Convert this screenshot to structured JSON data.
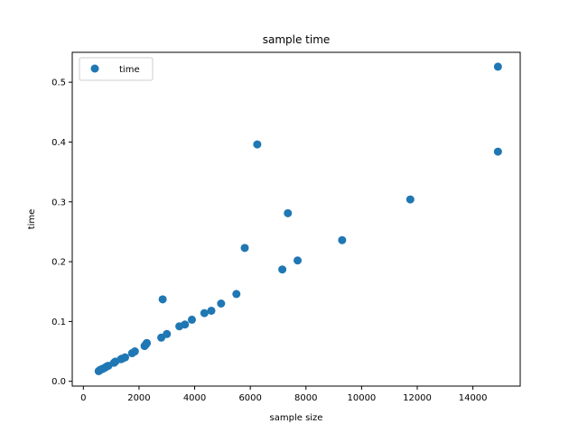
{
  "chart_data": {
    "type": "scatter",
    "title": "sample time",
    "xlabel": "sample size",
    "ylabel": "time",
    "xlim": [
      -400,
      15700
    ],
    "ylim": [
      -0.008,
      0.55
    ],
    "xticks": [
      0,
      2000,
      4000,
      6000,
      8000,
      10000,
      12000,
      14000
    ],
    "xtick_labels": [
      "0",
      "2000",
      "4000",
      "6000",
      "8000",
      "10000",
      "12000",
      "14000"
    ],
    "yticks": [
      0.0,
      0.1,
      0.2,
      0.3,
      0.4,
      0.5
    ],
    "ytick_labels": [
      "0.0",
      "0.1",
      "0.2",
      "0.3",
      "0.4",
      "0.5"
    ],
    "grid": false,
    "legend": {
      "position": "top-left",
      "entries": [
        "time"
      ]
    },
    "series": [
      {
        "name": "time",
        "color": "#1f77b4",
        "marker": "circle",
        "points": [
          [
            550,
            0.017
          ],
          [
            600,
            0.019
          ],
          [
            650,
            0.02
          ],
          [
            700,
            0.021
          ],
          [
            780,
            0.023
          ],
          [
            850,
            0.025
          ],
          [
            900,
            0.026
          ],
          [
            1100,
            0.031
          ],
          [
            1150,
            0.033
          ],
          [
            1350,
            0.037
          ],
          [
            1400,
            0.038
          ],
          [
            1500,
            0.04
          ],
          [
            1750,
            0.047
          ],
          [
            1850,
            0.05
          ],
          [
            2200,
            0.059
          ],
          [
            2250,
            0.062
          ],
          [
            2280,
            0.064
          ],
          [
            2800,
            0.073
          ],
          [
            2850,
            0.137
          ],
          [
            3000,
            0.079
          ],
          [
            3450,
            0.092
          ],
          [
            3650,
            0.095
          ],
          [
            3900,
            0.103
          ],
          [
            4350,
            0.114
          ],
          [
            4600,
            0.118
          ],
          [
            4950,
            0.13
          ],
          [
            5500,
            0.146
          ],
          [
            5800,
            0.223
          ],
          [
            6250,
            0.396
          ],
          [
            7150,
            0.187
          ],
          [
            7350,
            0.281
          ],
          [
            7700,
            0.202
          ],
          [
            9300,
            0.236
          ],
          [
            11750,
            0.304
          ],
          [
            14900,
            0.384
          ],
          [
            14900,
            0.526
          ]
        ]
      }
    ]
  }
}
